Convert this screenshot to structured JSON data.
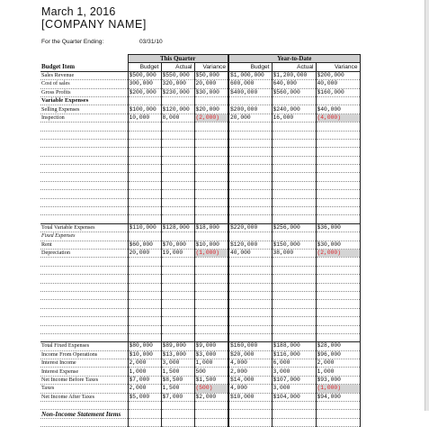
{
  "document": {
    "date": "March 1, 2016",
    "company": "[COMPANY NAME]",
    "quarter_label": "For the Quarter Ending:",
    "quarter_value": "03/31/10"
  },
  "table": {
    "group_headers": {
      "this_quarter": "This Quarter",
      "year_to_date": "Year-to-Date"
    },
    "columns": {
      "item": "Budget Item",
      "budget": "Budget",
      "actual": "Actual",
      "variance": "Variance"
    },
    "rows": [
      {
        "label": "Sales Revenue",
        "vals": [
          "$500,000",
          "$550,000",
          "$50,000",
          "$1,000,000",
          "$1,200,000",
          "$200,000"
        ]
      },
      {
        "label": "Cost of sales",
        "vals": [
          "300,000",
          "320,000",
          "20,000",
          "600,000",
          "640,000",
          "40,000"
        ]
      },
      {
        "label": "Gross Profits",
        "vals": [
          "$200,000",
          "$230,000",
          "$30,000",
          "$400,000",
          "$560,000",
          "$160,000"
        ]
      },
      {
        "label": "Variable Expenses",
        "style": "sec",
        "vals": [
          "",
          "",
          "",
          "",
          "",
          ""
        ]
      },
      {
        "label": "Selling Expenses",
        "vals": [
          "$100,000",
          "$120,000",
          "$20,000",
          "$200,000",
          "$240,000",
          "$40,000"
        ]
      },
      {
        "label": "Inspection",
        "vals": [
          "10,000",
          "8,000",
          "(2,000)",
          "20,000",
          "16,000",
          "(4,000)"
        ],
        "neg": [
          2,
          5
        ]
      },
      {
        "label": "",
        "vals": [
          "",
          "",
          "",
          "",
          "",
          ""
        ]
      },
      {
        "label": "",
        "vals": [
          "",
          "",
          "",
          "",
          "",
          ""
        ]
      },
      {
        "label": "",
        "vals": [
          "",
          "",
          "",
          "",
          "",
          ""
        ]
      },
      {
        "label": "",
        "vals": [
          "",
          "",
          "",
          "",
          "",
          ""
        ]
      },
      {
        "label": "",
        "vals": [
          "",
          "",
          "",
          "",
          "",
          ""
        ]
      },
      {
        "label": "",
        "vals": [
          "",
          "",
          "",
          "",
          "",
          ""
        ]
      },
      {
        "label": "",
        "vals": [
          "",
          "",
          "",
          "",
          "",
          ""
        ]
      },
      {
        "label": "",
        "vals": [
          "",
          "",
          "",
          "",
          "",
          ""
        ]
      },
      {
        "label": "",
        "vals": [
          "",
          "",
          "",
          "",
          "",
          ""
        ]
      },
      {
        "label": "",
        "vals": [
          "",
          "",
          "",
          "",
          "",
          ""
        ]
      },
      {
        "label": "",
        "vals": [
          "",
          "",
          "",
          "",
          "",
          ""
        ]
      },
      {
        "label": "",
        "vals": [
          "",
          "",
          "",
          "",
          "",
          ""
        ]
      },
      {
        "label": "Total Variable Expenses",
        "style": "total",
        "vals": [
          "$110,000",
          "$128,000",
          "$18,000",
          "$220,000",
          "$256,000",
          "$36,000"
        ]
      },
      {
        "label": "Fixed Expenses",
        "style": "subital",
        "vals": [
          "",
          "",
          "",
          "",
          "",
          ""
        ]
      },
      {
        "label": "Rent",
        "vals": [
          "$60,000",
          "$70,000",
          "$10,000",
          "$120,000",
          "$150,000",
          "$30,000"
        ]
      },
      {
        "label": "Depreciation",
        "vals": [
          "20,000",
          "19,000",
          "(1,000)",
          "40,000",
          "38,000",
          "(2,000)"
        ],
        "neg": [
          2,
          5
        ]
      },
      {
        "label": "",
        "vals": [
          "",
          "",
          "",
          "",
          "",
          ""
        ]
      },
      {
        "label": "",
        "vals": [
          "",
          "",
          "",
          "",
          "",
          ""
        ]
      },
      {
        "label": "",
        "vals": [
          "",
          "",
          "",
          "",
          "",
          ""
        ]
      },
      {
        "label": "",
        "vals": [
          "",
          "",
          "",
          "",
          "",
          ""
        ]
      },
      {
        "label": "",
        "vals": [
          "",
          "",
          "",
          "",
          "",
          ""
        ]
      },
      {
        "label": "",
        "vals": [
          "",
          "",
          "",
          "",
          "",
          ""
        ]
      },
      {
        "label": "",
        "vals": [
          "",
          "",
          "",
          "",
          "",
          ""
        ]
      },
      {
        "label": "",
        "vals": [
          "",
          "",
          "",
          "",
          "",
          ""
        ]
      },
      {
        "label": "",
        "vals": [
          "",
          "",
          "",
          "",
          "",
          ""
        ]
      },
      {
        "label": "",
        "vals": [
          "",
          "",
          "",
          "",
          "",
          ""
        ]
      },
      {
        "label": "Total Fixed Expenses",
        "style": "total",
        "vals": [
          "$80,000",
          "$89,000",
          "$9,000",
          "$160,000",
          "$188,000",
          "$28,000"
        ]
      },
      {
        "label": "Income From Operations",
        "vals": [
          "$10,000",
          "$13,000",
          "$3,000",
          "$20,000",
          "$116,000",
          "$96,000"
        ]
      },
      {
        "label": "Interest Income",
        "vals": [
          "2,000",
          "3,000",
          "1,000",
          "4,000",
          "6,000",
          "2,000"
        ]
      },
      {
        "label": "Interest Expense",
        "vals": [
          "1,000",
          "1,500",
          "500",
          "2,000",
          "3,000",
          "1,000"
        ]
      },
      {
        "label": "Net Income Before Taxes",
        "vals": [
          "$7,000",
          "$8,500",
          "$1,500",
          "$14,000",
          "$107,000",
          "$93,000"
        ]
      },
      {
        "label": "Taxes",
        "vals": [
          "2,000",
          "1,500",
          "(500)",
          "4,000",
          "3,000",
          "(1,000)"
        ],
        "neg": [
          2,
          5
        ]
      },
      {
        "label": "Net Income After Taxes",
        "vals": [
          "$5,000",
          "$7,000",
          "$2,000",
          "$10,000",
          "$104,000",
          "$94,000"
        ]
      },
      {
        "label": "",
        "vals": [
          "",
          "",
          "",
          "",
          "",
          ""
        ]
      },
      {
        "label": "Non-Income Statement Items",
        "style": "sec-ital",
        "vals": [
          "",
          "",
          "",
          "",
          "",
          ""
        ]
      },
      {
        "label": "",
        "vals": [
          "",
          "",
          "",
          "",
          "",
          ""
        ]
      }
    ]
  }
}
